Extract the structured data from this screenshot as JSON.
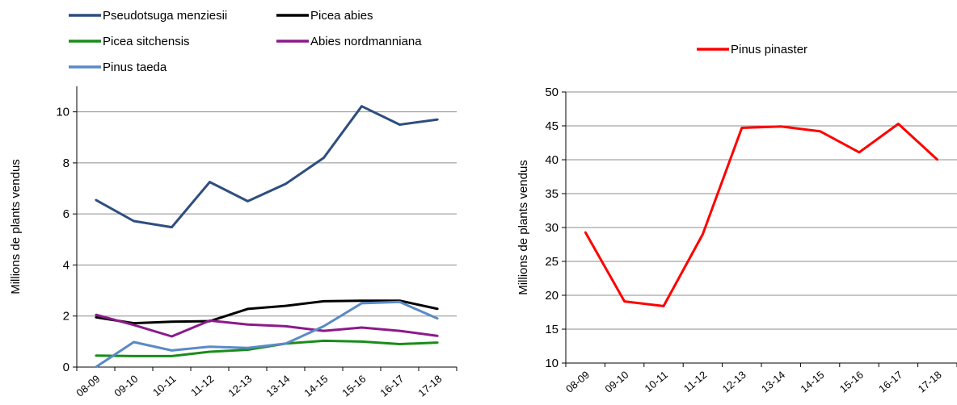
{
  "chart_data": [
    {
      "type": "line",
      "categories": [
        "08-09",
        "09-10",
        "10-11",
        "11-12",
        "12-13",
        "13-14",
        "14-15",
        "15-16",
        "16-17",
        "17-18"
      ],
      "ylabel": "Millions de plants vendus",
      "ylim": [
        0,
        11
      ],
      "yticks": [
        0,
        2,
        4,
        6,
        8,
        10
      ],
      "grid": "horizontal",
      "legend": "top",
      "series": [
        {
          "name": "Pseudotsuga menziesii",
          "color": "#2E4E7E",
          "values": [
            6.55,
            5.72,
            5.48,
            7.25,
            6.5,
            7.18,
            8.2,
            10.22,
            9.5,
            9.7
          ]
        },
        {
          "name": "Picea abies",
          "color": "#000000",
          "values": [
            1.95,
            1.72,
            1.78,
            1.8,
            2.28,
            2.4,
            2.58,
            2.6,
            2.6,
            2.28
          ]
        },
        {
          "name": "Picea sitchensis",
          "color": "#1A8C1A",
          "values": [
            0.45,
            0.43,
            0.43,
            0.6,
            0.68,
            0.92,
            1.03,
            1.0,
            0.9,
            0.96
          ]
        },
        {
          "name": "Abies nordmanniana",
          "color": "#8B1A8B",
          "values": [
            2.05,
            1.65,
            1.2,
            1.82,
            1.67,
            1.6,
            1.42,
            1.55,
            1.42,
            1.22
          ]
        },
        {
          "name": "Pinus taeda",
          "color": "#5A8AC6",
          "values": [
            0.0,
            0.98,
            0.65,
            0.8,
            0.75,
            0.92,
            1.6,
            2.5,
            2.55,
            1.9
          ]
        }
      ]
    },
    {
      "type": "line",
      "categories": [
        "08-09",
        "09-10",
        "10-11",
        "11-12",
        "12-13",
        "13-14",
        "14-15",
        "15-16",
        "16-17",
        "17-18"
      ],
      "ylabel": "Millions de plants vendus",
      "ylim": [
        10,
        50
      ],
      "yticks": [
        10,
        15,
        20,
        25,
        30,
        35,
        40,
        45,
        50
      ],
      "grid": "horizontal",
      "legend": "top",
      "series": [
        {
          "name": "Pinus pinaster",
          "color": "#FF0000",
          "values": [
            29.3,
            19.1,
            18.4,
            29.0,
            44.7,
            44.9,
            44.2,
            41.1,
            45.3,
            40.0
          ]
        }
      ]
    }
  ]
}
